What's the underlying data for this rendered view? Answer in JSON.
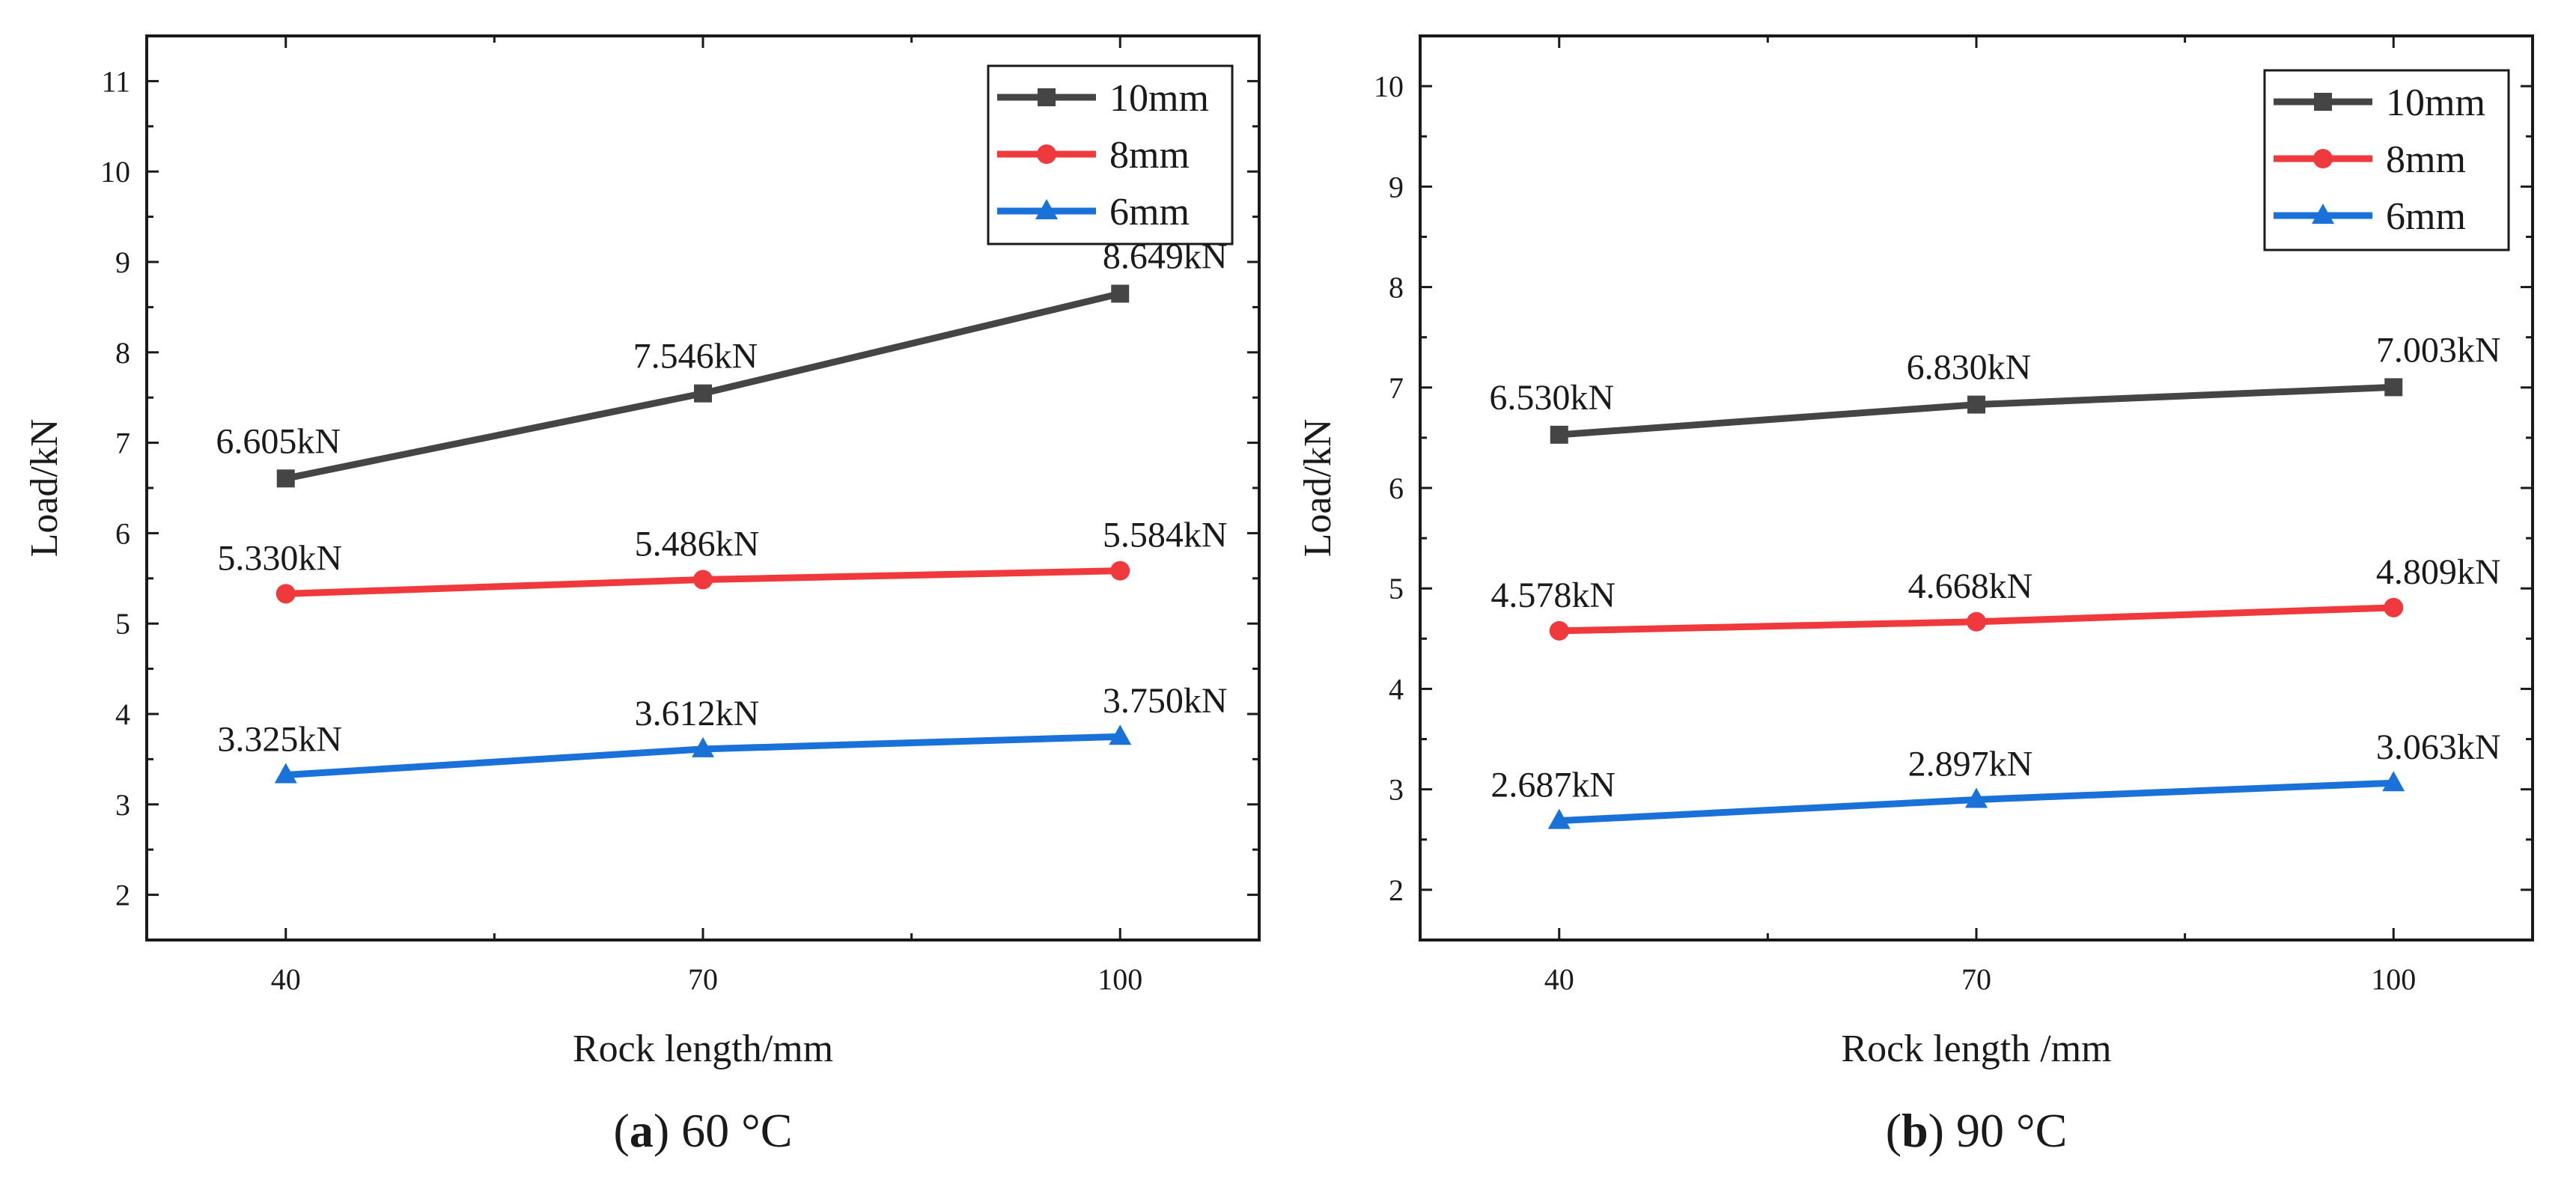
{
  "colors": {
    "series_10mm": "#454545",
    "series_8mm": "#f0393d",
    "series_6mm": "#1a72d9",
    "axis": "#1a1a1a"
  },
  "chart_data": [
    {
      "type": "line",
      "panel": "a",
      "caption_letter": "a",
      "caption_rest": ") 60 °C",
      "caption_open": "(",
      "xlabel": "Rock length/mm",
      "ylabel": "Load/kN",
      "x": [
        40,
        70,
        100
      ],
      "x_tick_labels": [
        "40",
        "70",
        "100"
      ],
      "xlim": [
        30,
        110
      ],
      "ylim": [
        1.5,
        11.5
      ],
      "y_ticks": [
        2,
        3,
        4,
        5,
        6,
        7,
        8,
        9,
        10,
        11
      ],
      "y_tick_labels": [
        "2",
        "3",
        "4",
        "5",
        "6",
        "7",
        "8",
        "9",
        "10",
        "11"
      ],
      "legend_position": "top-right",
      "series": [
        {
          "name": "10mm",
          "marker": "square",
          "values": [
            6.605,
            7.546,
            8.649
          ],
          "labels": [
            "6.605kN",
            "7.546kN",
            "8.649kN"
          ]
        },
        {
          "name": "8mm",
          "marker": "circle",
          "values": [
            5.33,
            5.486,
            5.584
          ],
          "labels": [
            "5.330kN",
            "5.486kN",
            "5.584kN"
          ]
        },
        {
          "name": "6mm",
          "marker": "triangle",
          "values": [
            3.325,
            3.612,
            3.75
          ],
          "labels": [
            "3.325kN",
            "3.612kN",
            "3.750kN"
          ]
        }
      ]
    },
    {
      "type": "line",
      "panel": "b",
      "caption_letter": "b",
      "caption_rest": ") 90 °C",
      "caption_open": "(",
      "xlabel": "Rock length /mm",
      "ylabel": "Load/kN",
      "x": [
        40,
        70,
        100
      ],
      "x_tick_labels": [
        "40",
        "70",
        "100"
      ],
      "xlim": [
        30,
        110
      ],
      "ylim": [
        1.5,
        10.5
      ],
      "y_ticks": [
        2,
        3,
        4,
        5,
        6,
        7,
        8,
        9,
        10
      ],
      "y_tick_labels": [
        "2",
        "3",
        "4",
        "5",
        "6",
        "7",
        "8",
        "9",
        "10"
      ],
      "legend_position": "top-right",
      "series": [
        {
          "name": "10mm",
          "marker": "square",
          "values": [
            6.53,
            6.83,
            7.003
          ],
          "labels": [
            "6.530kN",
            "6.830kN",
            "7.003kN"
          ]
        },
        {
          "name": "8mm",
          "marker": "circle",
          "values": [
            4.578,
            4.668,
            4.809
          ],
          "labels": [
            "4.578kN",
            "4.668kN",
            "4.809kN"
          ]
        },
        {
          "name": "6mm",
          "marker": "triangle",
          "values": [
            2.687,
            2.897,
            3.063
          ],
          "labels": [
            "2.687kN",
            "2.897kN",
            "3.063kN"
          ]
        }
      ]
    }
  ]
}
